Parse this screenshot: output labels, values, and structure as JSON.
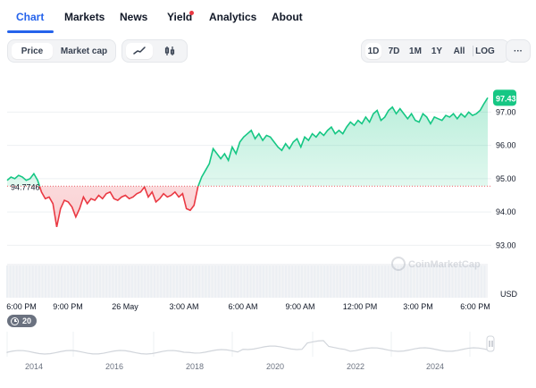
{
  "tabs": [
    {
      "label": "Chart",
      "active": true
    },
    {
      "label": "Markets",
      "active": false
    },
    {
      "label": "News",
      "active": false
    },
    {
      "label": "Yield",
      "active": false,
      "badge": true
    },
    {
      "label": "Analytics",
      "active": false
    },
    {
      "label": "About",
      "active": false
    }
  ],
  "toolbar": {
    "left": [
      {
        "label": "Price",
        "active": true
      },
      {
        "label": "Market cap",
        "active": false
      }
    ],
    "chart_type": [
      {
        "icon": "line-chart-icon",
        "active": true
      },
      {
        "icon": "candlestick-icon",
        "active": false
      }
    ],
    "ranges": [
      {
        "label": "1D",
        "active": true
      },
      {
        "label": "7D",
        "active": false
      },
      {
        "label": "1M",
        "active": false
      },
      {
        "label": "1Y",
        "active": false
      },
      {
        "label": "All",
        "active": false
      },
      {
        "label": "LOG",
        "active": false
      },
      {
        "label": "···",
        "active": false
      }
    ]
  },
  "colors": {
    "accent": "#2563eb",
    "up": "#16c784",
    "down": "#ea3943",
    "baseline": "#ea3943"
  },
  "watermark": "CoinMarketCap",
  "zoom_badge": "20",
  "chart_data": {
    "type": "line",
    "baseline_value": 94.7746,
    "last_value": 97.43,
    "y_unit_label": "USD",
    "y_ticks": [
      93.0,
      94.0,
      95.0,
      96.0,
      97.0
    ],
    "x_ticks": [
      "6:00 PM",
      "9:00 PM",
      "26 May",
      "3:00 AM",
      "6:00 AM",
      "9:00 AM",
      "12:00 PM",
      "3:00 PM",
      "6:00 PM"
    ],
    "series": [
      {
        "values": [
          94.95,
          95.05,
          95.0,
          95.1,
          95.05,
          94.95,
          95.0,
          95.15,
          94.95,
          94.6,
          94.4,
          94.45,
          94.25,
          93.55,
          94.1,
          94.35,
          94.3,
          94.15,
          93.85,
          94.1,
          94.45,
          94.25,
          94.4,
          94.35,
          94.5,
          94.4,
          94.55,
          94.6,
          94.4,
          94.35,
          94.45,
          94.5,
          94.4,
          94.45,
          94.55,
          94.6,
          94.75,
          94.45,
          94.6,
          94.3,
          94.4,
          94.55,
          94.45,
          94.5,
          94.6,
          94.45,
          94.55,
          94.1,
          94.05,
          94.2,
          94.75,
          95.05,
          95.25,
          95.45,
          95.9,
          95.75,
          95.6,
          95.75,
          95.55,
          95.95,
          95.75,
          96.1,
          96.25,
          96.35,
          96.45,
          96.2,
          96.35,
          96.15,
          96.3,
          96.25,
          96.1,
          95.95,
          95.85,
          96.05,
          95.9,
          96.1,
          96.2,
          95.95,
          96.25,
          96.15,
          96.35,
          96.25,
          96.4,
          96.3,
          96.45,
          96.55,
          96.35,
          96.45,
          96.35,
          96.55,
          96.7,
          96.6,
          96.75,
          96.65,
          96.85,
          96.7,
          96.95,
          97.05,
          96.75,
          96.85,
          97.05,
          97.15,
          96.95,
          97.1,
          96.95,
          96.8,
          96.95,
          96.75,
          96.7,
          96.95,
          96.85,
          96.65,
          96.85,
          96.8,
          96.75,
          96.9,
          96.85,
          96.95,
          96.8,
          96.95,
          96.85,
          97.0,
          96.9,
          96.95,
          97.05,
          97.25,
          97.43
        ]
      }
    ]
  }
}
